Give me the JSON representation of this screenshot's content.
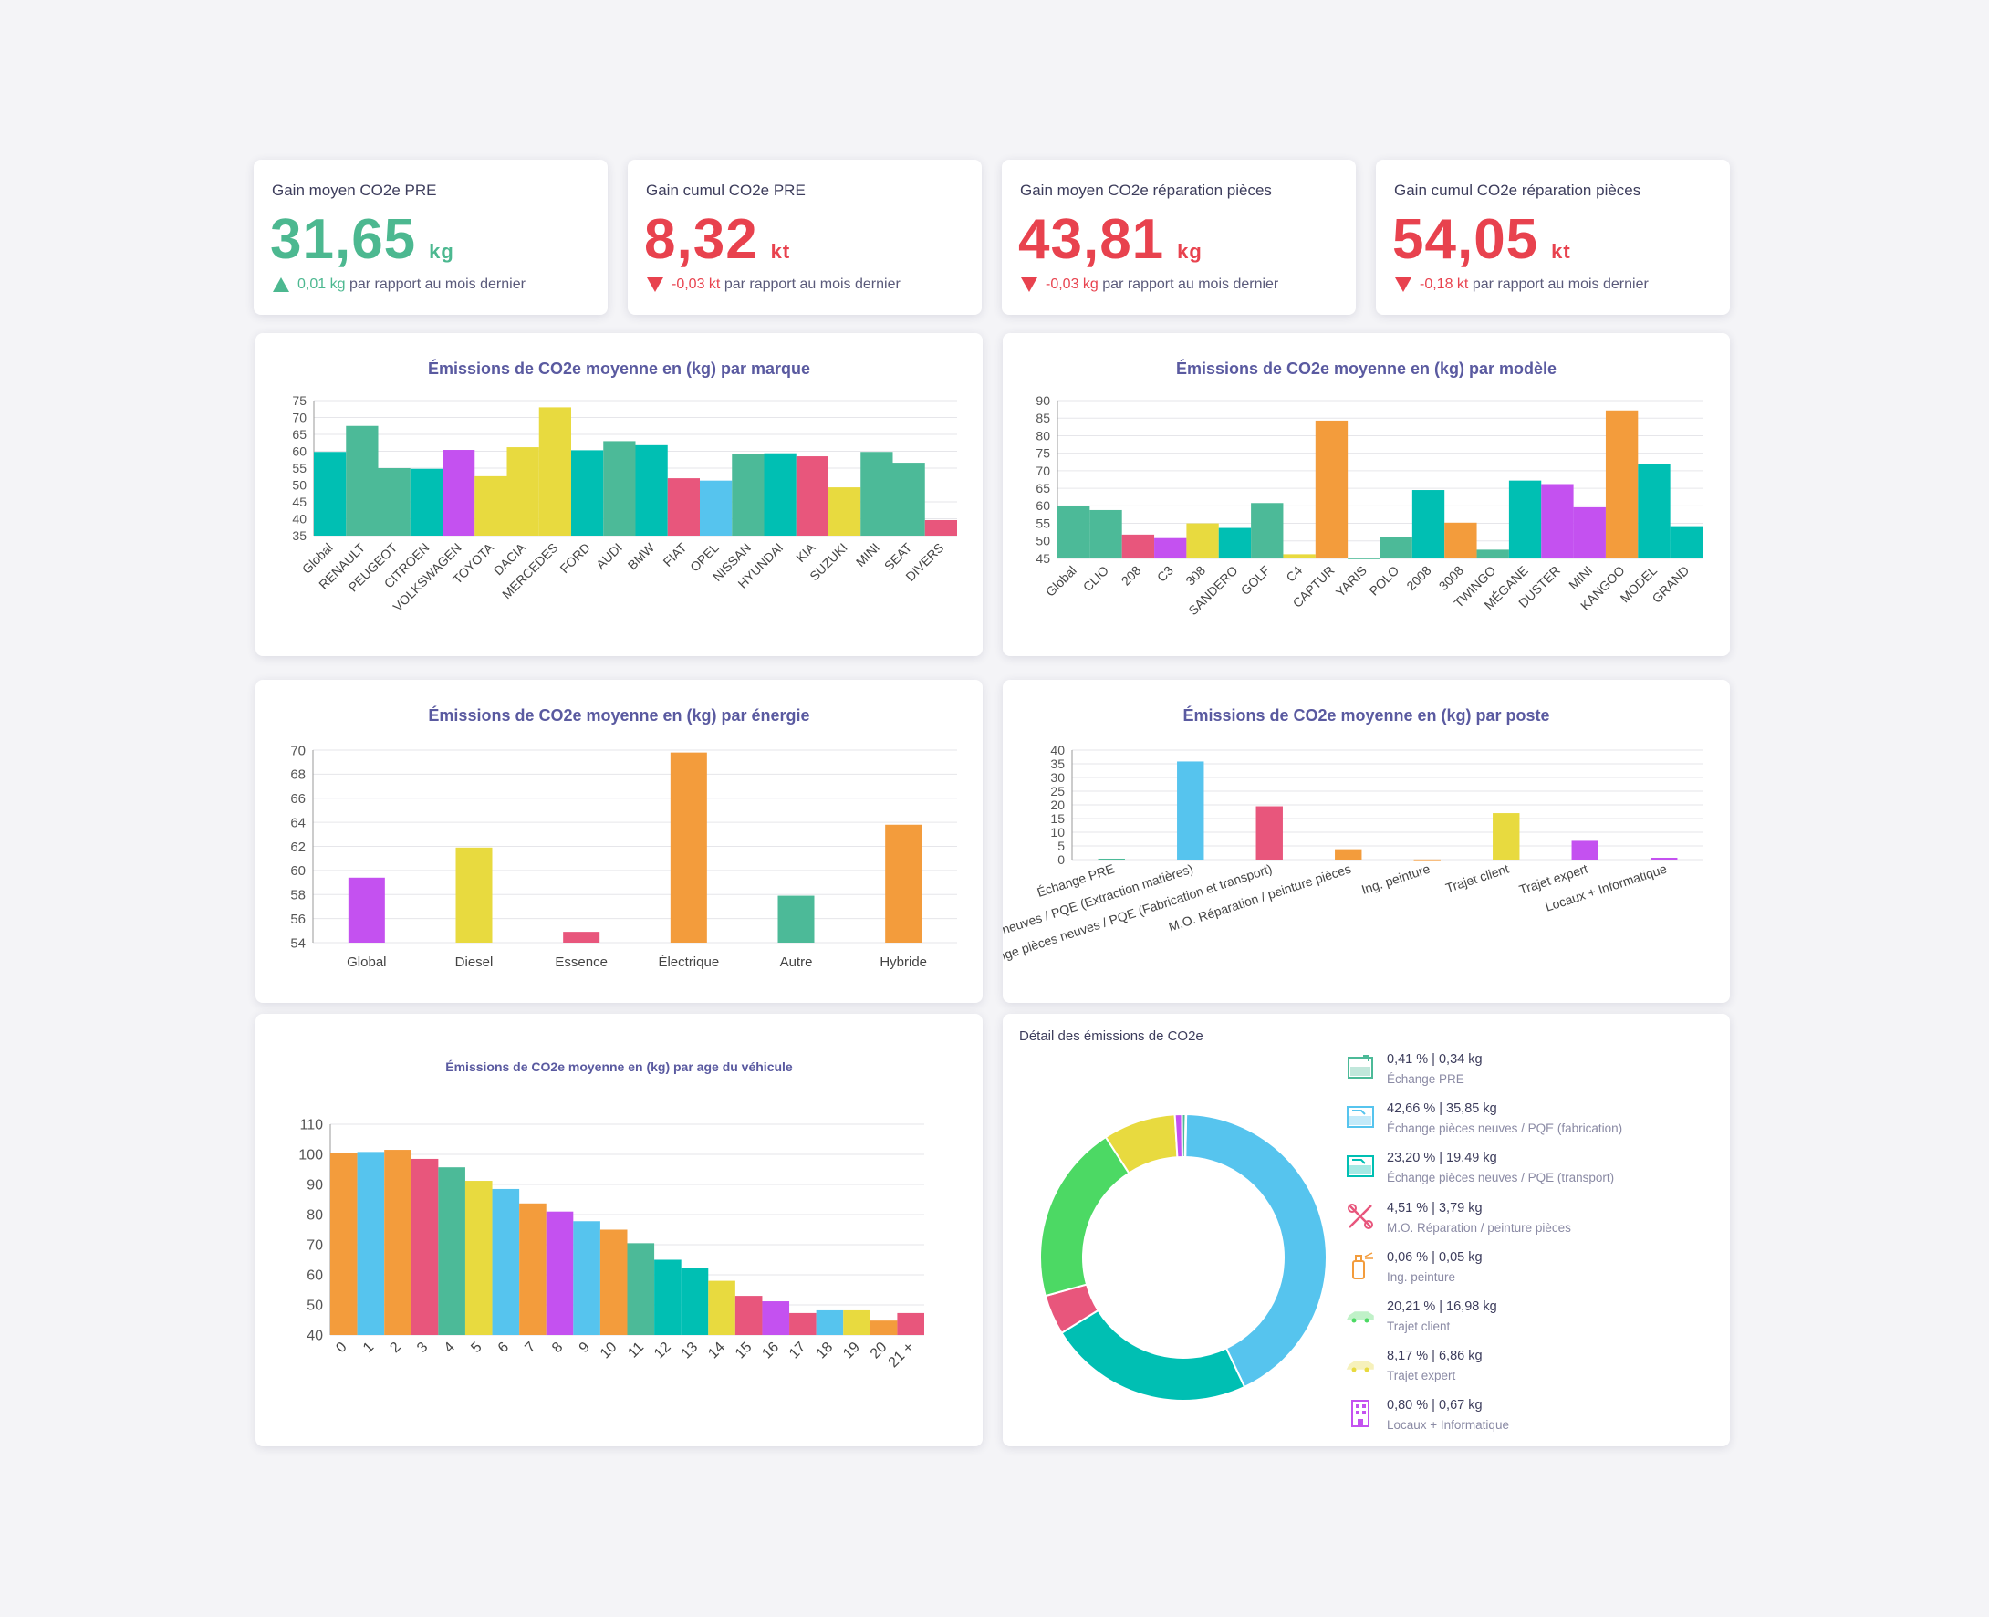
{
  "kpis": [
    {
      "title": "Gain moyen CO2e PRE",
      "value": "31,65",
      "unit": "kg",
      "delta": "0,01 kg",
      "delta_text": "par rapport au mois dernier",
      "trend": "up",
      "color": "#4cb890"
    },
    {
      "title": "Gain cumul CO2e PRE",
      "value": "8,32",
      "unit": "kt",
      "delta": "-0,03 kt",
      "delta_text": "par rapport au mois dernier",
      "trend": "down",
      "color": "#e8424e"
    },
    {
      "title": "Gain moyen CO2e réparation pièces",
      "value": "43,81",
      "unit": "kg",
      "delta": "-0,03 kg",
      "delta_text": "par rapport au mois dernier",
      "trend": "down",
      "color": "#e8424e"
    },
    {
      "title": "Gain cumul CO2e réparation pièces",
      "value": "54,05",
      "unit": "kt",
      "delta": "-0,18 kt",
      "delta_text": "par rapport au mois dernier",
      "trend": "down",
      "color": "#e8424e"
    }
  ],
  "chart_data": [
    {
      "id": "marque",
      "type": "bar",
      "title": "Émissions de CO2e moyenne en (kg) par marque",
      "ylim": [
        35,
        75
      ],
      "yticks": [
        35,
        40,
        45,
        50,
        55,
        60,
        65,
        70,
        75
      ],
      "label_rotation": -45,
      "categories": [
        "Global",
        "RENAULT",
        "PEUGEOT",
        "CITROEN",
        "VOLKSWAGEN",
        "TOYOTA",
        "DACIA",
        "MERCEDES",
        "FORD",
        "AUDI",
        "BMW",
        "FIAT",
        "OPEL",
        "NISSAN",
        "HYUNDAI",
        "KIA",
        "SUZUKI",
        "MINI",
        "SEAT",
        "DIVERS"
      ],
      "values": [
        59.8,
        67.5,
        55,
        54.8,
        60.4,
        52.6,
        61.2,
        73,
        60.3,
        63,
        61.8,
        52,
        51.3,
        59.2,
        59.4,
        58.5,
        49.3,
        59.8,
        56.6,
        39.6
      ],
      "colors": [
        "#00bfb3",
        "#4cba98",
        "#4cba98",
        "#00bfb3",
        "#c451f0",
        "#e8da3f",
        "#e8da3f",
        "#e8da3f",
        "#00bfb3",
        "#4cba98",
        "#00bfb3",
        "#e8567c",
        "#56c4ee",
        "#4cba98",
        "#00bfb3",
        "#e8567c",
        "#e8da3f",
        "#4cba98",
        "#4cba98",
        "#e8567c"
      ]
    },
    {
      "id": "modele",
      "type": "bar",
      "title": "Émissions de CO2e moyenne en (kg) par modèle",
      "ylim": [
        45,
        90
      ],
      "yticks": [
        45,
        50,
        55,
        60,
        65,
        70,
        75,
        80,
        85,
        90
      ],
      "label_rotation": -45,
      "categories": [
        "Global",
        "CLIO",
        "208",
        "C3",
        "308",
        "SANDERO",
        "GOLF",
        "C4",
        "CAPTUR",
        "YARIS",
        "POLO",
        "2008",
        "3008",
        "TWINGO",
        "MÉGANE",
        "DUSTER",
        "MINI",
        "KANGOO",
        "MODEL",
        "GRAND"
      ],
      "values": [
        60,
        58.8,
        51.8,
        50.8,
        55,
        53.7,
        60.8,
        46.2,
        84.3,
        44.5,
        51,
        64.5,
        55.2,
        47.5,
        67.2,
        66.2,
        59.6,
        87.2,
        71.8,
        54.2
      ],
      "colors": [
        "#4cba98",
        "#4cba98",
        "#e8567c",
        "#c451f0",
        "#e8da3f",
        "#00bfb3",
        "#4cba98",
        "#e8da3f",
        "#f39c3c",
        "#4cba98",
        "#4cba98",
        "#00bfb3",
        "#f39c3c",
        "#4cba98",
        "#00bfb3",
        "#c451f0",
        "#c451f0",
        "#f39c3c",
        "#00bfb3",
        "#00bfb3"
      ]
    },
    {
      "id": "energie",
      "type": "bar",
      "title": "Émissions de CO2e moyenne en (kg) par énergie",
      "ylim": [
        54,
        70
      ],
      "yticks": [
        54,
        56,
        58,
        60,
        62,
        64,
        66,
        68,
        70
      ],
      "label_rotation": 0,
      "categories": [
        "Global",
        "Diesel",
        "Essence",
        "Électrique",
        "Autre",
        "Hybride"
      ],
      "values": [
        59.4,
        61.9,
        54.9,
        69.8,
        57.9,
        63.8
      ],
      "colors": [
        "#c451f0",
        "#e8da3f",
        "#e8567c",
        "#f39c3c",
        "#4cba98",
        "#f39c3c"
      ]
    },
    {
      "id": "poste",
      "type": "bar",
      "title": "Émissions de CO2e moyenne en (kg) par poste",
      "ylim": [
        0,
        40
      ],
      "yticks": [
        0,
        5,
        10,
        15,
        20,
        25,
        30,
        35,
        40
      ],
      "label_rotation": -18,
      "categories": [
        "Échange PRE",
        "Échange pièces neuves / PQE (Extraction matières)",
        "Échange pièces neuves / PQE (Fabrication et transport)",
        "M.O. Réparation / peinture pièces",
        "Ing. peinture",
        "Trajet client",
        "Trajet expert",
        "Locaux + Informatique"
      ],
      "values": [
        0.34,
        35.85,
        19.49,
        3.79,
        0.05,
        16.98,
        6.86,
        0.67
      ],
      "colors": [
        "#4cba98",
        "#56c4ee",
        "#e8567c",
        "#f39c3c",
        "#f39c3c",
        "#e8da3f",
        "#c451f0",
        "#c451f0"
      ]
    },
    {
      "id": "age",
      "type": "bar",
      "title": "Émissions de CO2e moyenne en (kg) par age du véhicule",
      "ylim": [
        40,
        110
      ],
      "yticks": [
        40,
        50,
        60,
        70,
        80,
        90,
        100,
        110
      ],
      "label_rotation": -45,
      "categories": [
        "0",
        "1",
        "2",
        "3",
        "4",
        "5",
        "6",
        "7",
        "8",
        "9",
        "10",
        "11",
        "12",
        "13",
        "14",
        "15",
        "16",
        "17",
        "18",
        "19",
        "20",
        "21 +"
      ],
      "values": [
        100.5,
        100.8,
        101.5,
        98.5,
        95.7,
        91.2,
        88.5,
        83.7,
        81,
        77.8,
        75,
        70.5,
        65,
        62.2,
        58,
        53,
        51.2,
        47.3,
        48.2,
        48.2,
        44.8,
        47.3
      ],
      "colors": [
        "#f39c3c",
        "#56c4ee",
        "#f39c3c",
        "#e8567c",
        "#4cba98",
        "#e8da3f",
        "#56c4ee",
        "#f39c3c",
        "#c451f0",
        "#56c4ee",
        "#f39c3c",
        "#4cba98",
        "#00bfb3",
        "#00bfb3",
        "#e8da3f",
        "#e8567c",
        "#c451f0",
        "#e8567c",
        "#56c4ee",
        "#e8da3f",
        "#f39c3c",
        "#e8567c"
      ]
    },
    {
      "id": "detail",
      "type": "pie",
      "title": "Détail des émissions de CO2e",
      "slices": [
        {
          "pct": 0.41,
          "kg": "0,34 kg",
          "pct_label": "0,41 %",
          "label": "Échange PRE",
          "color": "#4cba98",
          "icon": "document-exchange-icon"
        },
        {
          "pct": 42.66,
          "kg": "35,85 kg",
          "pct_label": "42,66 %",
          "label": "Échange pièces neuves / PQE (fabrication)",
          "color": "#56c4ee",
          "icon": "part-fabrication-icon"
        },
        {
          "pct": 23.2,
          "kg": "19,49 kg",
          "pct_label": "23,20 %",
          "label": "Échange pièces neuves / PQE (transport)",
          "color": "#00bfb3",
          "icon": "part-transport-icon"
        },
        {
          "pct": 4.51,
          "kg": "3,79 kg",
          "pct_label": "4,51 %",
          "label": "M.O. Réparation / peinture pièces",
          "color": "#e8567c",
          "icon": "tools-icon"
        },
        {
          "pct": 0.06,
          "kg": "0,05 kg",
          "pct_label": "0,06 %",
          "label": "Ing. peinture",
          "color": "#f39c3c",
          "icon": "spray-paint-icon"
        },
        {
          "pct": 20.21,
          "kg": "16,98 kg",
          "pct_label": "20,21 %",
          "label": "Trajet client",
          "color": "#4cd964",
          "icon": "car-icon"
        },
        {
          "pct": 8.17,
          "kg": "6,86 kg",
          "pct_label": "8,17 %",
          "label": "Trajet expert",
          "color": "#e8da3f",
          "icon": "car-expert-icon"
        },
        {
          "pct": 0.8,
          "kg": "0,67 kg",
          "pct_label": "0,80 %",
          "label": "Locaux + Informatique",
          "color": "#c451f0",
          "icon": "building-icon"
        }
      ]
    }
  ]
}
